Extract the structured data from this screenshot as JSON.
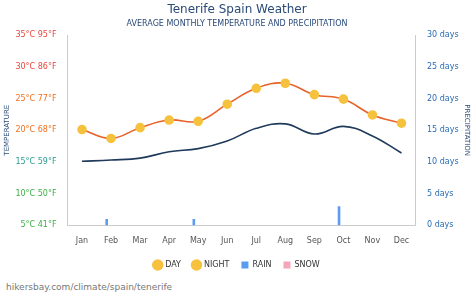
{
  "chart_data": {
    "type": "line",
    "title": "Tenerife Spain Weather",
    "subtitle": "AVERAGE MONTHLY TEMPERATURE AND PRECIPITATION",
    "y_label": "TEMPERATURE",
    "y2_label": "PRECIPITATION",
    "source": "hikersbay.com/climate/spain/tenerife",
    "categories": [
      "Jan",
      "Feb",
      "Mar",
      "Apr",
      "May",
      "Jun",
      "Jul",
      "Aug",
      "Sep",
      "Oct",
      "Nov",
      "Dec"
    ],
    "series": [
      {
        "name": "DAY",
        "type": "line",
        "color": "#e8622a",
        "marker": "circle",
        "line_style": "solid",
        "values": [
          20.1,
          18.7,
          20.4,
          21.6,
          21.4,
          24.1,
          26.6,
          27.4,
          25.6,
          24.9,
          22.4,
          21.1
        ]
      },
      {
        "name": "NIGHT",
        "type": "line",
        "color": "#1f3a5a",
        "marker": "none",
        "line_style": "solid",
        "values": [
          15.1,
          15.3,
          15.6,
          16.6,
          17.1,
          18.3,
          20.3,
          21.0,
          19.4,
          20.6,
          19.1,
          16.4
        ]
      },
      {
        "name": "RAIN",
        "type": "bar",
        "axis": "y2",
        "color": "#5b9bf0",
        "values": [
          0,
          1,
          0,
          0,
          1,
          0,
          0,
          0,
          0,
          3,
          0,
          0
        ]
      },
      {
        "name": "SNOW",
        "type": "bar",
        "axis": "y2",
        "color": "#f4a6b8",
        "values": [
          0,
          0,
          0,
          0,
          0,
          0,
          0,
          0,
          0,
          0,
          0,
          0
        ]
      }
    ],
    "ylim": [
      5,
      35
    ],
    "yticks": [
      {
        "value": 5,
        "label": "5°C 41°F"
      },
      {
        "value": 10,
        "label": "10°C 50°F"
      },
      {
        "value": 15,
        "label": "15°C 59°F"
      },
      {
        "value": 20,
        "label": "20°C 68°F"
      },
      {
        "value": 25,
        "label": "25°C 77°F"
      },
      {
        "value": 30,
        "label": "30°C 86°F"
      },
      {
        "value": 35,
        "label": "35°C 95°F"
      }
    ],
    "y2lim": [
      0,
      30
    ],
    "y2ticks": [
      {
        "value": 0,
        "label": "0 days"
      },
      {
        "value": 5,
        "label": "5 days"
      },
      {
        "value": 10,
        "label": "10 days"
      },
      {
        "value": 15,
        "label": "15 days"
      },
      {
        "value": 20,
        "label": "20 days"
      },
      {
        "value": 25,
        "label": "25 days"
      },
      {
        "value": 30,
        "label": "30 days"
      }
    ],
    "grid": false,
    "legend": "bottom"
  }
}
